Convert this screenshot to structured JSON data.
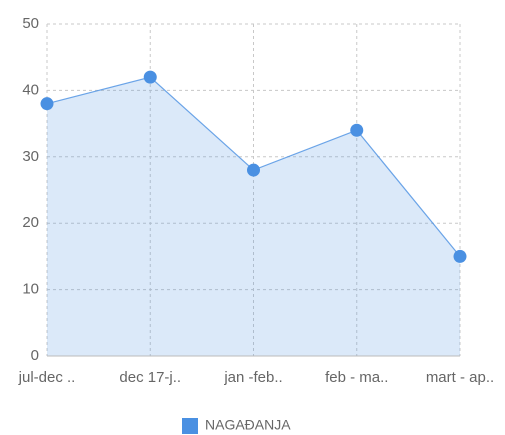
{
  "chart_data": {
    "type": "area",
    "categories": [
      "jul-dec ..",
      "dec 17-j..",
      "jan -feb..",
      "feb - ma..",
      "mart - ap.."
    ],
    "series": [
      {
        "name": "NAGAĐANJA",
        "color": "#4a90e2",
        "values": [
          38,
          42,
          28,
          34,
          15
        ]
      }
    ],
    "ylim": [
      0,
      50
    ],
    "yticks": [
      0,
      10,
      20,
      30,
      40,
      50
    ],
    "grid": true,
    "legend": "bottom"
  }
}
